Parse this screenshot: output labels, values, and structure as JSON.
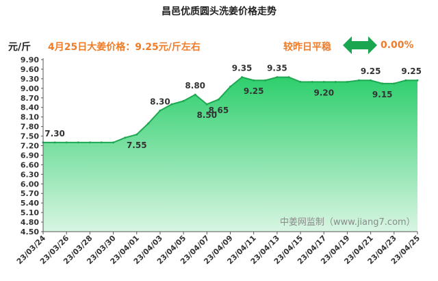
{
  "header": {
    "title": "昌邑优质圆头洗姜价格走势",
    "unit": "元/斤",
    "price_note": "4月25日大姜价格：9.25元/斤左右",
    "trend_label": "较昨日平稳",
    "trend_change": "0.00%",
    "trend_icon": "double-arrow-icon"
  },
  "colors": {
    "area_top": "#2ecf6d",
    "area_bottom": "#d8f5e2",
    "line": "#1ea851",
    "accent": "#f07c28",
    "arrow": "#1aa551"
  },
  "chart_data": {
    "type": "area",
    "title": "昌邑优质圆头洗姜价格走势",
    "ylabel": "元/斤",
    "xlabel": "",
    "ylim": [
      4.5,
      9.9
    ],
    "yticks": [
      "4.50",
      "4.80",
      "5.10",
      "5.40",
      "5.70",
      "6.00",
      "6.30",
      "6.60",
      "6.90",
      "7.20",
      "7.50",
      "7.80",
      "8.10",
      "8.40",
      "8.70",
      "9.00",
      "9.30",
      "9.60",
      "9.90"
    ],
    "x": [
      "23/03/24",
      "23/03/25",
      "23/03/26",
      "23/03/27",
      "23/03/28",
      "23/03/29",
      "23/03/30",
      "23/03/31",
      "23/04/01",
      "23/04/02",
      "23/04/03",
      "23/04/04",
      "23/04/05",
      "23/04/06",
      "23/04/07",
      "23/04/08",
      "23/04/09",
      "23/04/10",
      "23/04/11",
      "23/04/12",
      "23/04/13",
      "23/04/14",
      "23/04/15",
      "23/04/16",
      "23/04/17",
      "23/04/18",
      "23/04/19",
      "23/04/20",
      "23/04/21",
      "23/04/22",
      "23/04/23",
      "23/04/24",
      "23/04/25"
    ],
    "xticks": [
      "23/03/24",
      "23/03/26",
      "23/03/28",
      "23/03/30",
      "23/04/01",
      "23/04/03",
      "23/04/05",
      "23/04/07",
      "23/04/09",
      "23/04/11",
      "23/04/13",
      "23/04/15",
      "23/04/17",
      "23/04/19",
      "23/04/21",
      "23/04/23",
      "23/04/25"
    ],
    "values": [
      7.3,
      7.3,
      7.3,
      7.3,
      7.3,
      7.3,
      7.3,
      7.45,
      7.55,
      7.9,
      8.3,
      8.5,
      8.6,
      8.8,
      8.5,
      8.65,
      9.05,
      9.35,
      9.25,
      9.25,
      9.35,
      9.35,
      9.2,
      9.2,
      9.2,
      9.2,
      9.2,
      9.25,
      9.25,
      9.15,
      9.15,
      9.25,
      9.25
    ],
    "annotations": [
      {
        "index": 1,
        "label": "7.30",
        "pos": "above"
      },
      {
        "index": 8,
        "label": "7.55",
        "pos": "below"
      },
      {
        "index": 10,
        "label": "8.30",
        "pos": "above"
      },
      {
        "index": 13,
        "label": "8.80",
        "pos": "above"
      },
      {
        "index": 14,
        "label": "8.50",
        "pos": "below"
      },
      {
        "index": 15,
        "label": "8.65",
        "pos": "below"
      },
      {
        "index": 17,
        "label": "9.35",
        "pos": "above"
      },
      {
        "index": 18,
        "label": "9.25",
        "pos": "below"
      },
      {
        "index": 20,
        "label": "9.35",
        "pos": "above"
      },
      {
        "index": 24,
        "label": "9.20",
        "pos": "below"
      },
      {
        "index": 28,
        "label": "9.25",
        "pos": "above"
      },
      {
        "index": 29,
        "label": "9.15",
        "pos": "below"
      },
      {
        "index": 32,
        "label": "9.25",
        "pos": "above"
      }
    ],
    "grid": false,
    "legend": "none"
  },
  "watermark": "中姜网监制（www.jiang7.com）"
}
